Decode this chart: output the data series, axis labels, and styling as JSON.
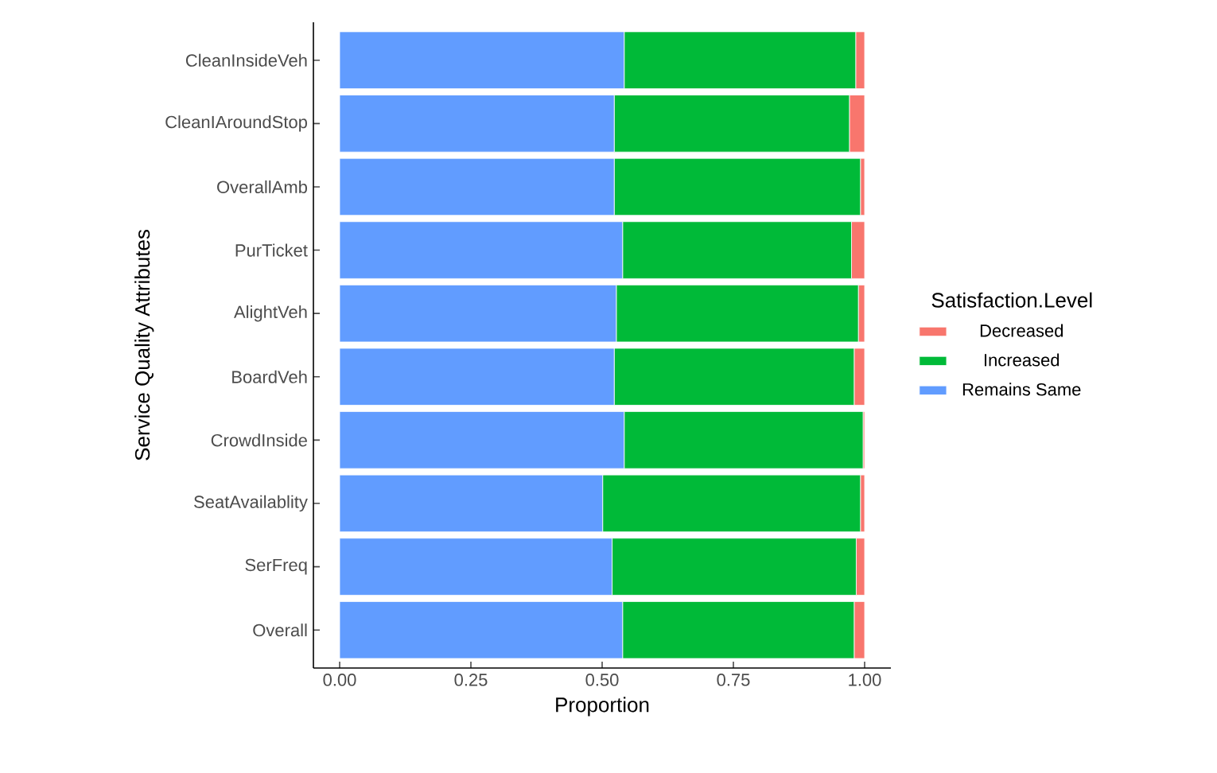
{
  "chart_data": {
    "type": "bar",
    "orientation": "horizontal",
    "stacked": true,
    "xlabel": "Proportion",
    "ylabel": "Service Quality Attributes",
    "legend_title": "Satisfaction.Level",
    "legend": "right",
    "categories": [
      "CleanInsideVeh",
      "CleanIAroundStop",
      "OverallAmb",
      "PurTicket",
      "AlightVeh",
      "BoardVeh",
      "CrowdInside",
      "SeatAvailablity",
      "SerFreq",
      "Overall"
    ],
    "series": [
      {
        "name": "Remains Same",
        "color": "#619cff",
        "values": [
          0.542,
          0.523,
          0.523,
          0.539,
          0.527,
          0.523,
          0.542,
          0.501,
          0.519,
          0.539
        ]
      },
      {
        "name": "Increased",
        "color": "#00ba38",
        "values": [
          0.441,
          0.448,
          0.469,
          0.436,
          0.461,
          0.457,
          0.455,
          0.491,
          0.465,
          0.441
        ]
      },
      {
        "name": "Decreased",
        "color": "#f8766d",
        "values": [
          0.017,
          0.029,
          0.008,
          0.025,
          0.012,
          0.02,
          0.003,
          0.008,
          0.016,
          0.02
        ]
      }
    ],
    "xlim": [
      -0.05,
      1.05
    ],
    "xticks": [
      {
        "value": 0,
        "label": "0.00"
      },
      {
        "value": 0.25,
        "label": "0.25"
      },
      {
        "value": 0.5,
        "label": "0.50"
      },
      {
        "value": 0.75,
        "label": "0.75"
      },
      {
        "value": 1,
        "label": "1.00"
      }
    ],
    "grid": false
  }
}
